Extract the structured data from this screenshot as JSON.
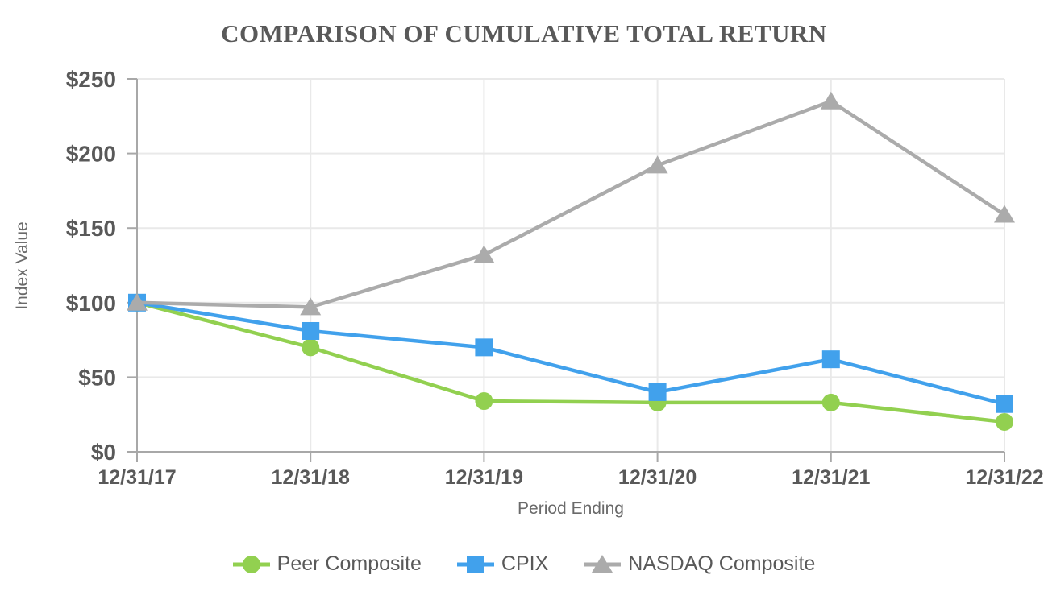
{
  "chart_data": {
    "type": "line",
    "title": "COMPARISON OF CUMULATIVE TOTAL RETURN",
    "xlabel": "Period Ending",
    "ylabel": "Index Value",
    "x": [
      "12/31/17",
      "12/31/18",
      "12/31/19",
      "12/31/20",
      "12/31/21",
      "12/31/22"
    ],
    "series": [
      {
        "name": "Peer Composite",
        "marker": "circle",
        "color": "#92d050",
        "values": [
          100,
          70,
          34,
          33,
          33,
          20
        ]
      },
      {
        "name": "CPIX",
        "marker": "square",
        "color": "#41a1ec",
        "values": [
          100,
          81,
          70,
          40,
          62,
          32
        ]
      },
      {
        "name": "NASDAQ Composite",
        "marker": "triangle",
        "color": "#ababab",
        "values": [
          100,
          97,
          132,
          192,
          235,
          159
        ]
      }
    ],
    "ylim": [
      0,
      250
    ],
    "y_ticks": [
      0,
      50,
      100,
      150,
      200,
      250
    ],
    "y_tick_labels": [
      "$0",
      "$50",
      "$100",
      "$150",
      "$200",
      "$250"
    ],
    "grid": true,
    "legend_position": "bottom"
  },
  "colors": {
    "title": "#595959",
    "axis_line": "#a8a8a8",
    "grid_line": "#e9e9e9",
    "tick_label": "#595959",
    "axis_title": "#6a6a6a",
    "legend_label": "#595959"
  }
}
